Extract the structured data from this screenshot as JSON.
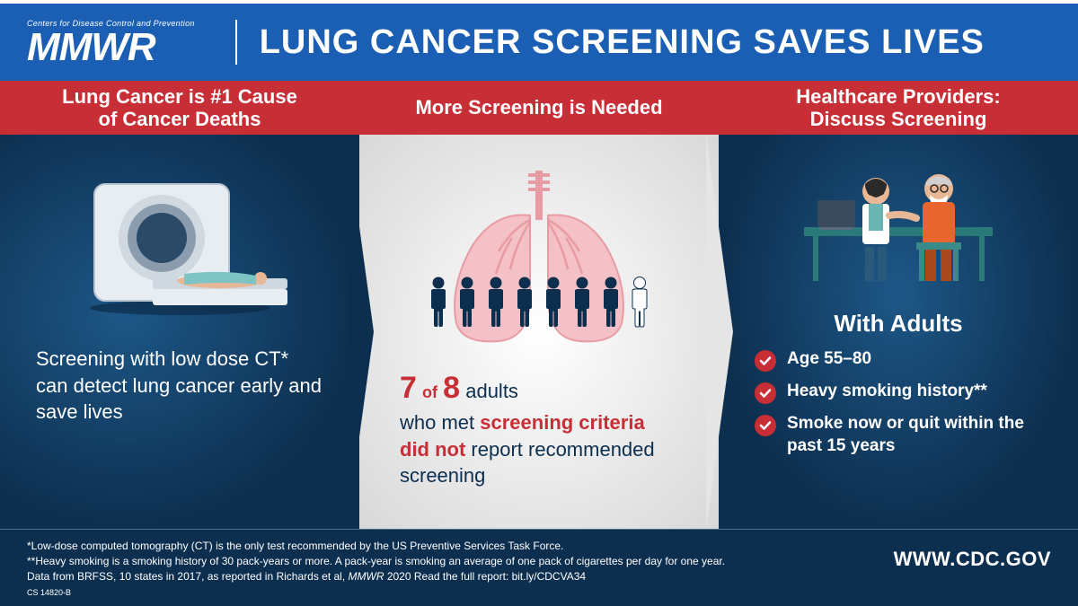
{
  "header": {
    "logo_super": "Centers for Disease Control and Prevention",
    "logo_main": "MMWR",
    "title": "LUNG CANCER SCREENING SAVES LIVES"
  },
  "ribbon": {
    "cells": [
      "Lung Cancer is #1 Cause\nof Cancer Deaths",
      "More Screening is Needed",
      "Healthcare Providers:\nDiscuss Screening"
    ]
  },
  "panel1": {
    "text": "Screening with low dose CT* can detect lung cancer early and save lives"
  },
  "panel2": {
    "stat_n": "7",
    "stat_of": "of",
    "stat_d": "8",
    "stat_tail": " adults",
    "line2a": "who met ",
    "line2b": "screening criteria",
    "line3a": "did not",
    "line3b": " report recommended screening",
    "people_total": 8,
    "people_highlighted": 7
  },
  "panel3": {
    "title": "With Adults",
    "items": [
      "Age 55–80",
      "Heavy smoking history**",
      "Smoke now or quit within the past 15 years"
    ]
  },
  "footer": {
    "line1": "*Low-dose computed tomography (CT) is the only test recommended by the US Preventive Services Task Force.",
    "line2": "**Heavy smoking is a smoking history of 30 pack-years or more. A pack-year is smoking an average of one pack of cigarettes per day for one year.",
    "line3a": "Data from BRFSS, 10 states in 2017, as reported in Richards et al, ",
    "line3b": "MMWR",
    "line3c": " 2020 Read the full report: bit.ly/CDCVA34",
    "cs": "CS 14820-B",
    "url": "WWW.CDC.GOV"
  },
  "colors": {
    "header_bg": "#1a5fb4",
    "ribbon_bg": "#c72e36",
    "dark_bg": "#0d2f4f",
    "light_panel": "#e5e5e5",
    "accent_red": "#c72e36",
    "lung_pink": "#f4c2c6",
    "lung_pink_dark": "#e89ba3",
    "person_dark": "#0d2f4f",
    "person_light": "#ffffff"
  },
  "styling": {
    "header_title_size": 38,
    "ribbon_size": 22,
    "panel_text_size": 22,
    "stat_size": 34,
    "footer_size": 12
  }
}
